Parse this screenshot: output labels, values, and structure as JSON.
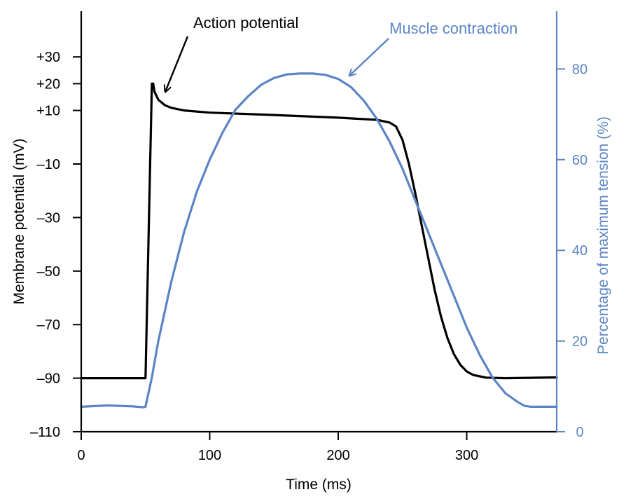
{
  "chart_data": {
    "type": "line",
    "x_axis": {
      "label": "Time (ms)",
      "range": [
        0,
        370
      ],
      "ticks": [
        0,
        100,
        200,
        300
      ]
    },
    "y_left": {
      "label": "Membrane potential (mV)",
      "range": [
        -110,
        40
      ],
      "ticks": [
        30,
        20,
        10,
        -10,
        -30,
        -50,
        -70,
        -90,
        -110
      ],
      "tick_labels": [
        "+30",
        "+20",
        "+10",
        "–10",
        "–30",
        "–50",
        "–70",
        "–90",
        "–110"
      ]
    },
    "y_right": {
      "label": "Percentage of maximum tension (%)",
      "range": [
        0,
        90
      ],
      "ticks": [
        0,
        20,
        40,
        60,
        80
      ]
    },
    "series": [
      {
        "name": "Action potential",
        "axis": "left",
        "color": "#000000",
        "points": [
          [
            0,
            -90
          ],
          [
            49,
            -90
          ],
          [
            50,
            -90
          ],
          [
            55,
            20
          ],
          [
            56,
            20
          ],
          [
            57,
            17
          ],
          [
            60,
            14
          ],
          [
            65,
            12
          ],
          [
            70,
            11
          ],
          [
            80,
            10
          ],
          [
            100,
            9.2
          ],
          [
            150,
            8.3
          ],
          [
            200,
            7.3
          ],
          [
            230,
            6.5
          ],
          [
            240,
            5.5
          ],
          [
            245,
            4
          ],
          [
            250,
            -1
          ],
          [
            255,
            -10
          ],
          [
            260,
            -21
          ],
          [
            265,
            -33
          ],
          [
            270,
            -45
          ],
          [
            275,
            -57
          ],
          [
            280,
            -67
          ],
          [
            285,
            -75
          ],
          [
            290,
            -81
          ],
          [
            295,
            -85
          ],
          [
            300,
            -87.5
          ],
          [
            305,
            -88.8
          ],
          [
            315,
            -89.8
          ],
          [
            330,
            -90
          ],
          [
            370,
            -89.7
          ]
        ],
        "annotation": "Action potential"
      },
      {
        "name": "Muscle contraction",
        "axis": "right",
        "color": "#5b84c4",
        "points": [
          [
            0,
            5.5
          ],
          [
            20,
            5.8
          ],
          [
            40,
            5.6
          ],
          [
            48,
            5.4
          ],
          [
            50,
            5.5
          ],
          [
            55,
            12
          ],
          [
            60,
            20
          ],
          [
            70,
            33
          ],
          [
            80,
            44
          ],
          [
            90,
            53
          ],
          [
            100,
            60
          ],
          [
            110,
            66
          ],
          [
            120,
            71
          ],
          [
            130,
            74
          ],
          [
            140,
            76.5
          ],
          [
            150,
            78
          ],
          [
            160,
            78.8
          ],
          [
            170,
            79
          ],
          [
            180,
            79
          ],
          [
            190,
            78.7
          ],
          [
            200,
            77.8
          ],
          [
            210,
            76
          ],
          [
            220,
            73
          ],
          [
            230,
            69
          ],
          [
            240,
            64
          ],
          [
            250,
            58
          ],
          [
            260,
            51
          ],
          [
            270,
            44
          ],
          [
            280,
            37
          ],
          [
            290,
            30
          ],
          [
            300,
            23
          ],
          [
            310,
            17
          ],
          [
            320,
            12
          ],
          [
            330,
            8.5
          ],
          [
            340,
            6.5
          ],
          [
            345,
            5.7
          ],
          [
            350,
            5.5
          ],
          [
            370,
            5.5
          ]
        ],
        "annotation": "Muscle contraction"
      }
    ],
    "grid": false,
    "legend": "none"
  }
}
